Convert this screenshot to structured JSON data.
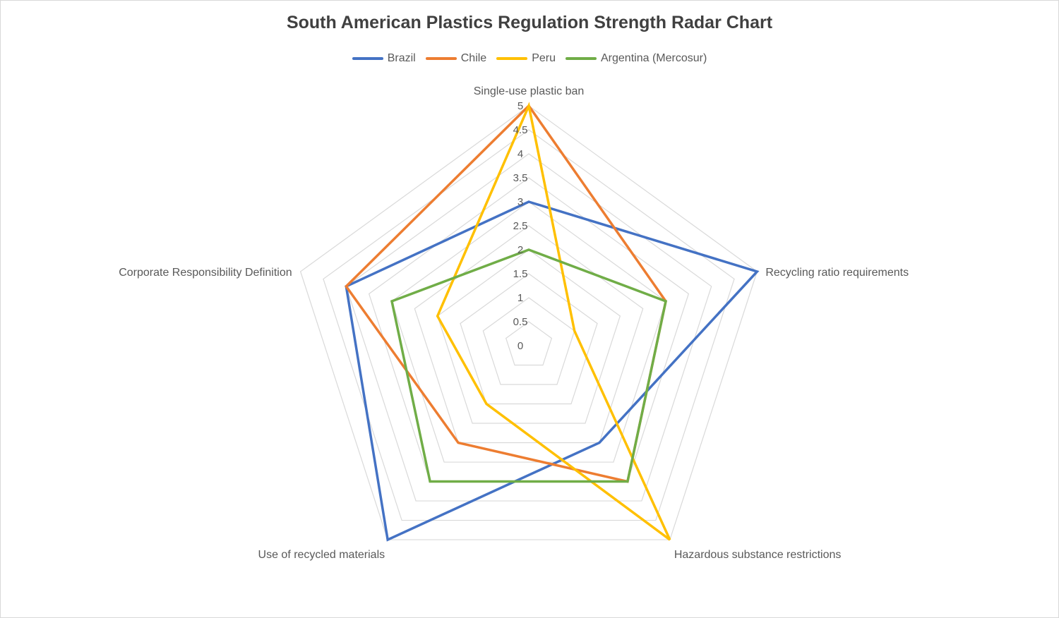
{
  "chart_data": {
    "type": "radar",
    "title": "South American Plastics Regulation Strength Radar Chart",
    "axes": [
      "Single-use plastic ban",
      "Recycling ratio requirements",
      "Hazardous substance restrictions",
      "Use of recycled materials",
      "Corporate Responsibility Definition"
    ],
    "rlim": [
      0,
      5
    ],
    "ticks": [
      "0",
      "0.5",
      "1",
      "1.5",
      "2",
      "2.5",
      "3",
      "3.5",
      "4",
      "4.5",
      "5"
    ],
    "tick_values": [
      0,
      0.5,
      1,
      1.5,
      2,
      2.5,
      3,
      3.5,
      4,
      4.5,
      5
    ],
    "grid": true,
    "legend_position": "top",
    "series": [
      {
        "name": "Brazil",
        "color": "#4472C4",
        "values": [
          3,
          5,
          2.5,
          5,
          4
        ]
      },
      {
        "name": "Chile",
        "color": "#ED7D31",
        "values": [
          5,
          3,
          3.5,
          2.5,
          4
        ]
      },
      {
        "name": "Peru",
        "color": "#FFC000",
        "values": [
          5,
          1,
          5,
          1.5,
          2
        ]
      },
      {
        "name": "Argentina (Mercosur)",
        "color": "#70AD47",
        "values": [
          2,
          3,
          3.5,
          3.5,
          3
        ]
      }
    ]
  }
}
